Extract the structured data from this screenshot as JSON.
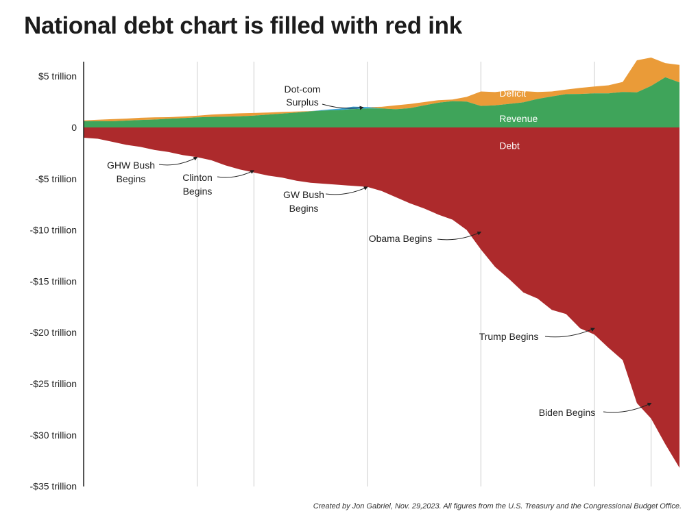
{
  "title": "National debt chart is filled with red ink",
  "credit": "Created by Jon Gabriel, Nov. 29,2023. All figures from the U.S. Treasury and the Congressional Budget Office.",
  "colors": {
    "debt": "#ad2a2c",
    "revenue": "#3fa45a",
    "deficit": "#ea9b38",
    "surplus": "#3aa3dc",
    "gridline": "#cccccc",
    "axis": "#1c1c1c"
  },
  "chart_data": {
    "type": "area",
    "title": "National debt chart is filled with red ink",
    "ylim": [
      -35,
      5.5
    ],
    "yticks": [
      {
        "value": 5,
        "label": "$5 trillion"
      },
      {
        "value": 0,
        "label": "0"
      },
      {
        "value": -5,
        "label": "-$5 trillion"
      },
      {
        "value": -10,
        "label": "-$10 trillion"
      },
      {
        "value": -15,
        "label": "-$15 trillion"
      },
      {
        "value": -20,
        "label": "-$20 trillion"
      },
      {
        "value": -25,
        "label": "-$25 trillion"
      },
      {
        "value": -30,
        "label": "-$30 trillion"
      },
      {
        "value": -35,
        "label": "-$35 trillion"
      }
    ],
    "xlim": [
      1981,
      2023
    ],
    "gridlines_x": [
      1989,
      1993,
      2001,
      2009,
      2017,
      2021
    ],
    "x": [
      1981,
      1982,
      1983,
      1984,
      1985,
      1986,
      1987,
      1988,
      1989,
      1990,
      1991,
      1992,
      1993,
      1994,
      1995,
      1996,
      1997,
      1998,
      1999,
      2000,
      2001,
      2002,
      2003,
      2004,
      2005,
      2006,
      2007,
      2008,
      2009,
      2010,
      2011,
      2012,
      2013,
      2014,
      2015,
      2016,
      2017,
      2018,
      2019,
      2020,
      2021,
      2022,
      2023
    ],
    "series": [
      {
        "name": "Revenue",
        "values": [
          0.6,
          0.62,
          0.6,
          0.67,
          0.73,
          0.77,
          0.85,
          0.91,
          0.99,
          1.03,
          1.05,
          1.09,
          1.15,
          1.26,
          1.35,
          1.45,
          1.58,
          1.72,
          1.83,
          2.03,
          1.99,
          1.85,
          1.78,
          1.88,
          2.15,
          2.41,
          2.57,
          2.52,
          2.1,
          2.16,
          2.3,
          2.45,
          2.78,
          3.02,
          3.25,
          3.27,
          3.32,
          3.33,
          3.46,
          3.42,
          4.05,
          4.9,
          4.4
        ]
      },
      {
        "name": "Deficit",
        "values": [
          0.08,
          0.13,
          0.21,
          0.19,
          0.21,
          0.22,
          0.15,
          0.16,
          0.15,
          0.22,
          0.27,
          0.29,
          0.26,
          0.2,
          0.16,
          0.11,
          0.02,
          0,
          0,
          0,
          0,
          0.16,
          0.38,
          0.41,
          0.32,
          0.25,
          0.16,
          0.46,
          1.41,
          1.29,
          1.3,
          1.09,
          0.68,
          0.49,
          0.44,
          0.59,
          0.67,
          0.78,
          0.98,
          3.13,
          2.77,
          1.38,
          1.7
        ]
      },
      {
        "name": "Surplus",
        "values": [
          0,
          0,
          0,
          0,
          0,
          0,
          0,
          0,
          0,
          0,
          0,
          0,
          0,
          0,
          0,
          0,
          0,
          0.07,
          0.13,
          0.24,
          0.13,
          0,
          0,
          0,
          0,
          0,
          0,
          0,
          0,
          0,
          0,
          0,
          0,
          0,
          0,
          0,
          0,
          0,
          0,
          0,
          0,
          0,
          0
        ]
      },
      {
        "name": "Debt",
        "values": [
          -1.0,
          -1.1,
          -1.4,
          -1.7,
          -1.9,
          -2.2,
          -2.4,
          -2.7,
          -2.9,
          -3.2,
          -3.7,
          -4.1,
          -4.4,
          -4.7,
          -4.9,
          -5.2,
          -5.4,
          -5.5,
          -5.6,
          -5.7,
          -5.8,
          -6.2,
          -6.8,
          -7.4,
          -7.9,
          -8.5,
          -9.0,
          -10.0,
          -11.9,
          -13.6,
          -14.8,
          -16.1,
          -16.7,
          -17.8,
          -18.2,
          -19.6,
          -20.2,
          -21.5,
          -22.7,
          -26.9,
          -28.4,
          -30.9,
          -33.2
        ]
      }
    ],
    "series_labels": {
      "deficit": "Deficit",
      "revenue": "Revenue",
      "debt": "Debt"
    },
    "annotations": [
      {
        "id": "dotcom",
        "lines": [
          "Dot-com",
          "Surplus"
        ]
      },
      {
        "id": "ghwbush",
        "lines": [
          "GHW Bush",
          "Begins"
        ]
      },
      {
        "id": "clinton",
        "lines": [
          "Clinton",
          "Begins"
        ]
      },
      {
        "id": "gwbush",
        "lines": [
          "GW Bush",
          "Begins"
        ]
      },
      {
        "id": "obama",
        "lines": [
          "Obama Begins"
        ]
      },
      {
        "id": "trump",
        "lines": [
          "Trump Begins"
        ]
      },
      {
        "id": "biden",
        "lines": [
          "Biden Begins"
        ]
      }
    ]
  }
}
